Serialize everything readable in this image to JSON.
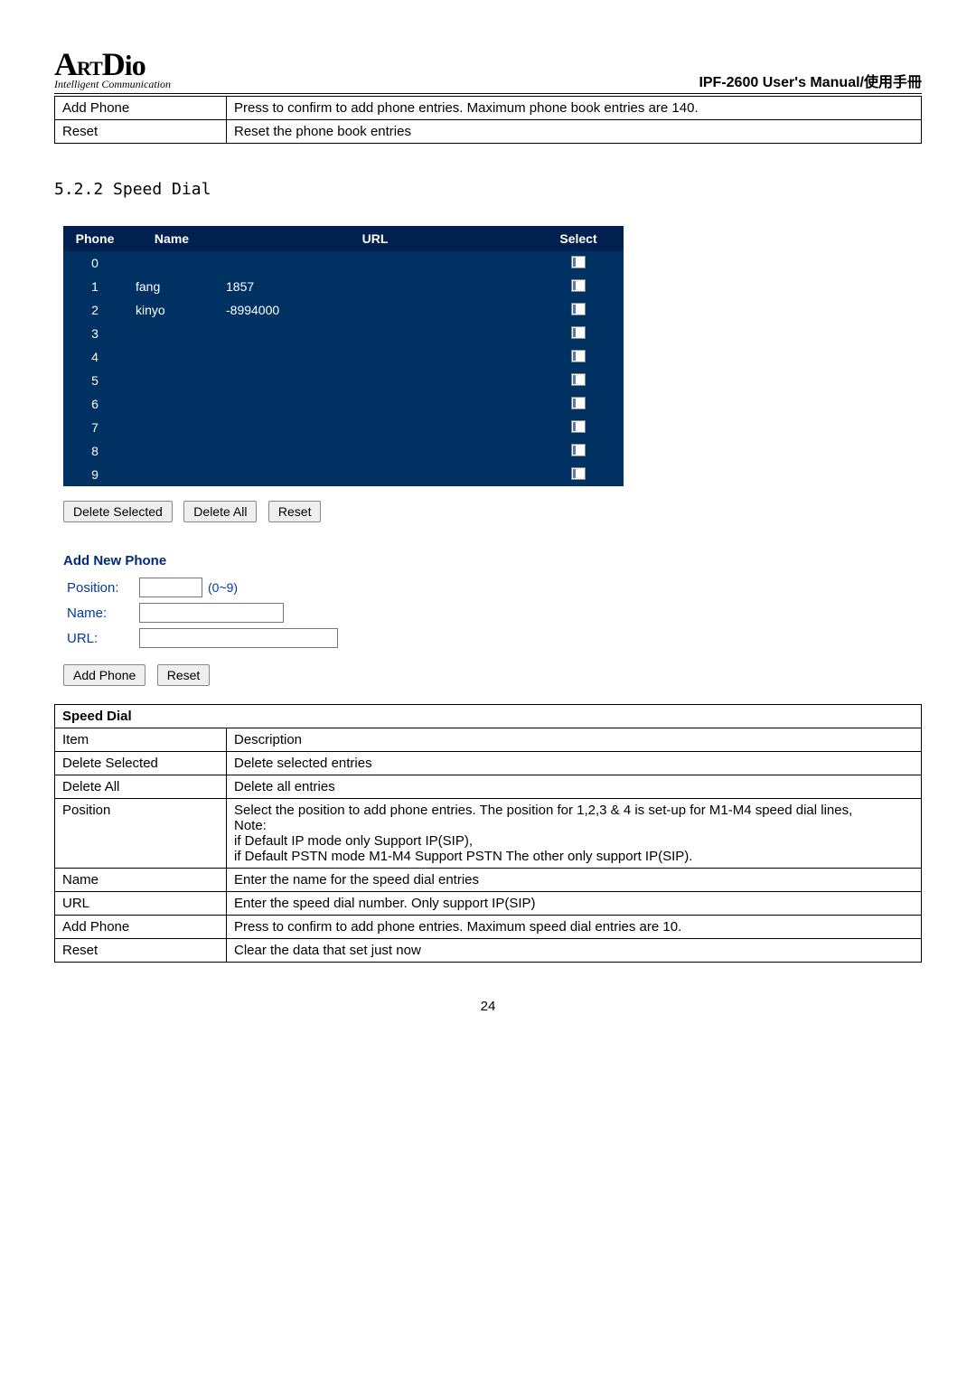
{
  "header": {
    "logo_main": "ArtDio",
    "logo_sub": "Intelligent Communication",
    "manual_title": "IPF-2600 User's Manual/使用手冊"
  },
  "top_table": {
    "rows": [
      {
        "label": "Add Phone",
        "desc": "Press to confirm to add phone entries. Maximum phone book entries are 140."
      },
      {
        "label": "Reset",
        "desc": "Reset the phone book entries"
      }
    ]
  },
  "section": {
    "number": "5.2.2",
    "title": "Speed Dial"
  },
  "speed_dial_list": {
    "headers": {
      "phone": "Phone",
      "name": "Name",
      "url": "URL",
      "select": "Select"
    },
    "rows": [
      {
        "phone": "0",
        "name": "",
        "url": ""
      },
      {
        "phone": "1",
        "name": "fang",
        "url": "1857"
      },
      {
        "phone": "2",
        "name": "kinyo",
        "url": "-8994000"
      },
      {
        "phone": "3",
        "name": "",
        "url": ""
      },
      {
        "phone": "4",
        "name": "",
        "url": ""
      },
      {
        "phone": "5",
        "name": "",
        "url": ""
      },
      {
        "phone": "6",
        "name": "",
        "url": ""
      },
      {
        "phone": "7",
        "name": "",
        "url": ""
      },
      {
        "phone": "8",
        "name": "",
        "url": ""
      },
      {
        "phone": "9",
        "name": "",
        "url": ""
      }
    ]
  },
  "list_buttons": {
    "delete_selected": "Delete Selected",
    "delete_all": "Delete All",
    "reset": "Reset"
  },
  "add_form": {
    "heading": "Add New Phone",
    "position_label": "Position:",
    "position_hint": "(0~9)",
    "name_label": "Name:",
    "url_label": "URL:",
    "add_btn": "Add Phone",
    "reset_btn": "Reset"
  },
  "desc_table": {
    "title": "Speed Dial",
    "header_item": "Item",
    "header_desc": "Description",
    "rows": [
      {
        "item": "Delete Selected",
        "desc": "Delete selected entries"
      },
      {
        "item": "Delete All",
        "desc": "Delete all entries"
      },
      {
        "item": "Position",
        "desc": "Select the position to add phone entries. The position for 1,2,3 & 4 is set-up for M1-M4 speed dial lines,\nNote:\nif Default IP mode only Support IP(SIP),\nif Default PSTN mode M1-M4 Support PSTN The other only support IP(SIP)."
      },
      {
        "item": "Name",
        "desc": "Enter the name for the speed dial entries"
      },
      {
        "item": "URL",
        "desc": "Enter the speed dial number. Only support IP(SIP)"
      },
      {
        "item": "Add Phone",
        "desc": "Press to confirm to add phone entries. Maximum speed dial entries are 10."
      },
      {
        "item": "Reset",
        "desc": "Clear the data that set just now"
      }
    ]
  },
  "page_number": "24",
  "colors": {
    "table_bg": "#003163",
    "table_header_bg": "#002050",
    "link_blue": "#003a9a"
  }
}
